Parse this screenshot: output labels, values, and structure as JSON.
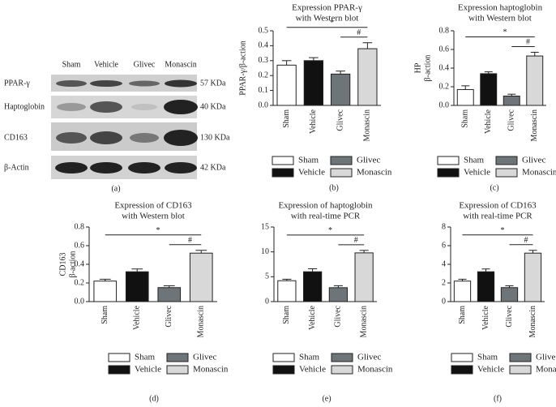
{
  "blot": {
    "label": "(a)",
    "columns": [
      "Sham",
      "Vehicle",
      "Glivec",
      "Monascin"
    ],
    "rows": [
      {
        "name": "PPAR-γ",
        "weight": "57 KDa"
      },
      {
        "name": "Haptoglobin",
        "weight": "40 KDa"
      },
      {
        "name": "CD163",
        "weight": "130 KDa"
      },
      {
        "name": "β-Actin",
        "weight": "42 KDa"
      }
    ]
  },
  "chart_data": [
    {
      "type": "bar",
      "label": "(b)",
      "title": [
        "Expression PPAR-γ",
        "with Western blot"
      ],
      "ylabel": [
        "PPAR-γ/β-action"
      ],
      "categories": [
        "Sham",
        "Vehicle",
        "Glivec",
        "Monascin"
      ],
      "values": [
        0.27,
        0.3,
        0.21,
        0.38
      ],
      "errors": [
        0.03,
        0.02,
        0.02,
        0.04
      ],
      "colors": [
        "#ffffff",
        "#111111",
        "#6e7579",
        "#d8d8d8"
      ],
      "ylim": [
        0,
        0.5
      ],
      "yticks": [
        {
          "value": 0,
          "label": "0.0"
        },
        0.1,
        0.2,
        0.3,
        0.4,
        0.5
      ],
      "annotations": [
        {
          "text": "*",
          "between": [
            "Sham",
            "Monascin"
          ]
        },
        {
          "text": "#",
          "between": [
            "Glivec",
            "Monascin"
          ]
        }
      ]
    },
    {
      "type": "bar",
      "label": "(c)",
      "title": [
        "Expression haptoglobin",
        "with Western blot"
      ],
      "ylabel": [
        "HP",
        "β-action"
      ],
      "categories": [
        "Sham",
        "Vehicle",
        "Glivec",
        "Monascin"
      ],
      "values": [
        0.17,
        0.34,
        0.1,
        0.53
      ],
      "errors": [
        0.04,
        0.02,
        0.02,
        0.04
      ],
      "colors": [
        "#ffffff",
        "#111111",
        "#6e7579",
        "#d8d8d8"
      ],
      "ylim": [
        0,
        0.8
      ],
      "yticks": [
        {
          "value": 0,
          "label": "0.0"
        },
        0.2,
        0.4,
        0.6,
        0.8
      ],
      "annotations": [
        {
          "text": "*",
          "between": [
            "Sham",
            "Monascin"
          ]
        },
        {
          "text": "#",
          "between": [
            "Glivec",
            "Monascin"
          ]
        }
      ]
    },
    {
      "type": "bar",
      "label": "(d)",
      "title": [
        "Expression of CD163",
        "with Western blot"
      ],
      "ylabel": [
        "CD163",
        "β-action"
      ],
      "categories": [
        "Sham",
        "Vehicle",
        "Glivec",
        "Monascin"
      ],
      "values": [
        0.22,
        0.32,
        0.15,
        0.52
      ],
      "errors": [
        0.02,
        0.03,
        0.02,
        0.03
      ],
      "colors": [
        "#ffffff",
        "#111111",
        "#6e7579",
        "#d8d8d8"
      ],
      "ylim": [
        0,
        0.8
      ],
      "yticks": [
        {
          "value": 0,
          "label": "0.0"
        },
        0.2,
        0.4,
        0.6,
        0.8
      ],
      "annotations": [
        {
          "text": "*",
          "between": [
            "Sham",
            "Monascin"
          ]
        },
        {
          "text": "#",
          "between": [
            "Glivec",
            "Monascin"
          ]
        }
      ]
    },
    {
      "type": "bar",
      "label": "(e)",
      "title": [
        "Expression of haptoglobin",
        "with real-time PCR"
      ],
      "categories": [
        "Sham",
        "Vehicle",
        "Glivec",
        "Monascin"
      ],
      "values": [
        4.2,
        6.0,
        2.8,
        9.8
      ],
      "errors": [
        0.3,
        0.6,
        0.4,
        0.5
      ],
      "colors": [
        "#ffffff",
        "#111111",
        "#6e7579",
        "#d8d8d8"
      ],
      "ylim": [
        0,
        15
      ],
      "yticks": [
        0,
        5,
        10,
        15
      ],
      "annotations": [
        {
          "text": "*",
          "between": [
            "Sham",
            "Monascin"
          ]
        },
        {
          "text": "#",
          "between": [
            "Glivec",
            "Monascin"
          ]
        }
      ]
    },
    {
      "type": "bar",
      "label": "(f)",
      "title": [
        "Expression of CD163",
        "with real-time PCR"
      ],
      "categories": [
        "Sham",
        "Vehicle",
        "Glivec",
        "Monascin"
      ],
      "values": [
        2.2,
        3.2,
        1.5,
        5.2
      ],
      "errors": [
        0.2,
        0.3,
        0.2,
        0.3
      ],
      "colors": [
        "#ffffff",
        "#111111",
        "#6e7579",
        "#d8d8d8"
      ],
      "ylim": [
        0,
        8
      ],
      "yticks": [
        0,
        2,
        4,
        6,
        8
      ],
      "annotations": [
        {
          "text": "*",
          "between": [
            "Sham",
            "Monascin"
          ]
        },
        {
          "text": "#",
          "between": [
            "Glivec",
            "Monascin"
          ]
        }
      ]
    }
  ]
}
